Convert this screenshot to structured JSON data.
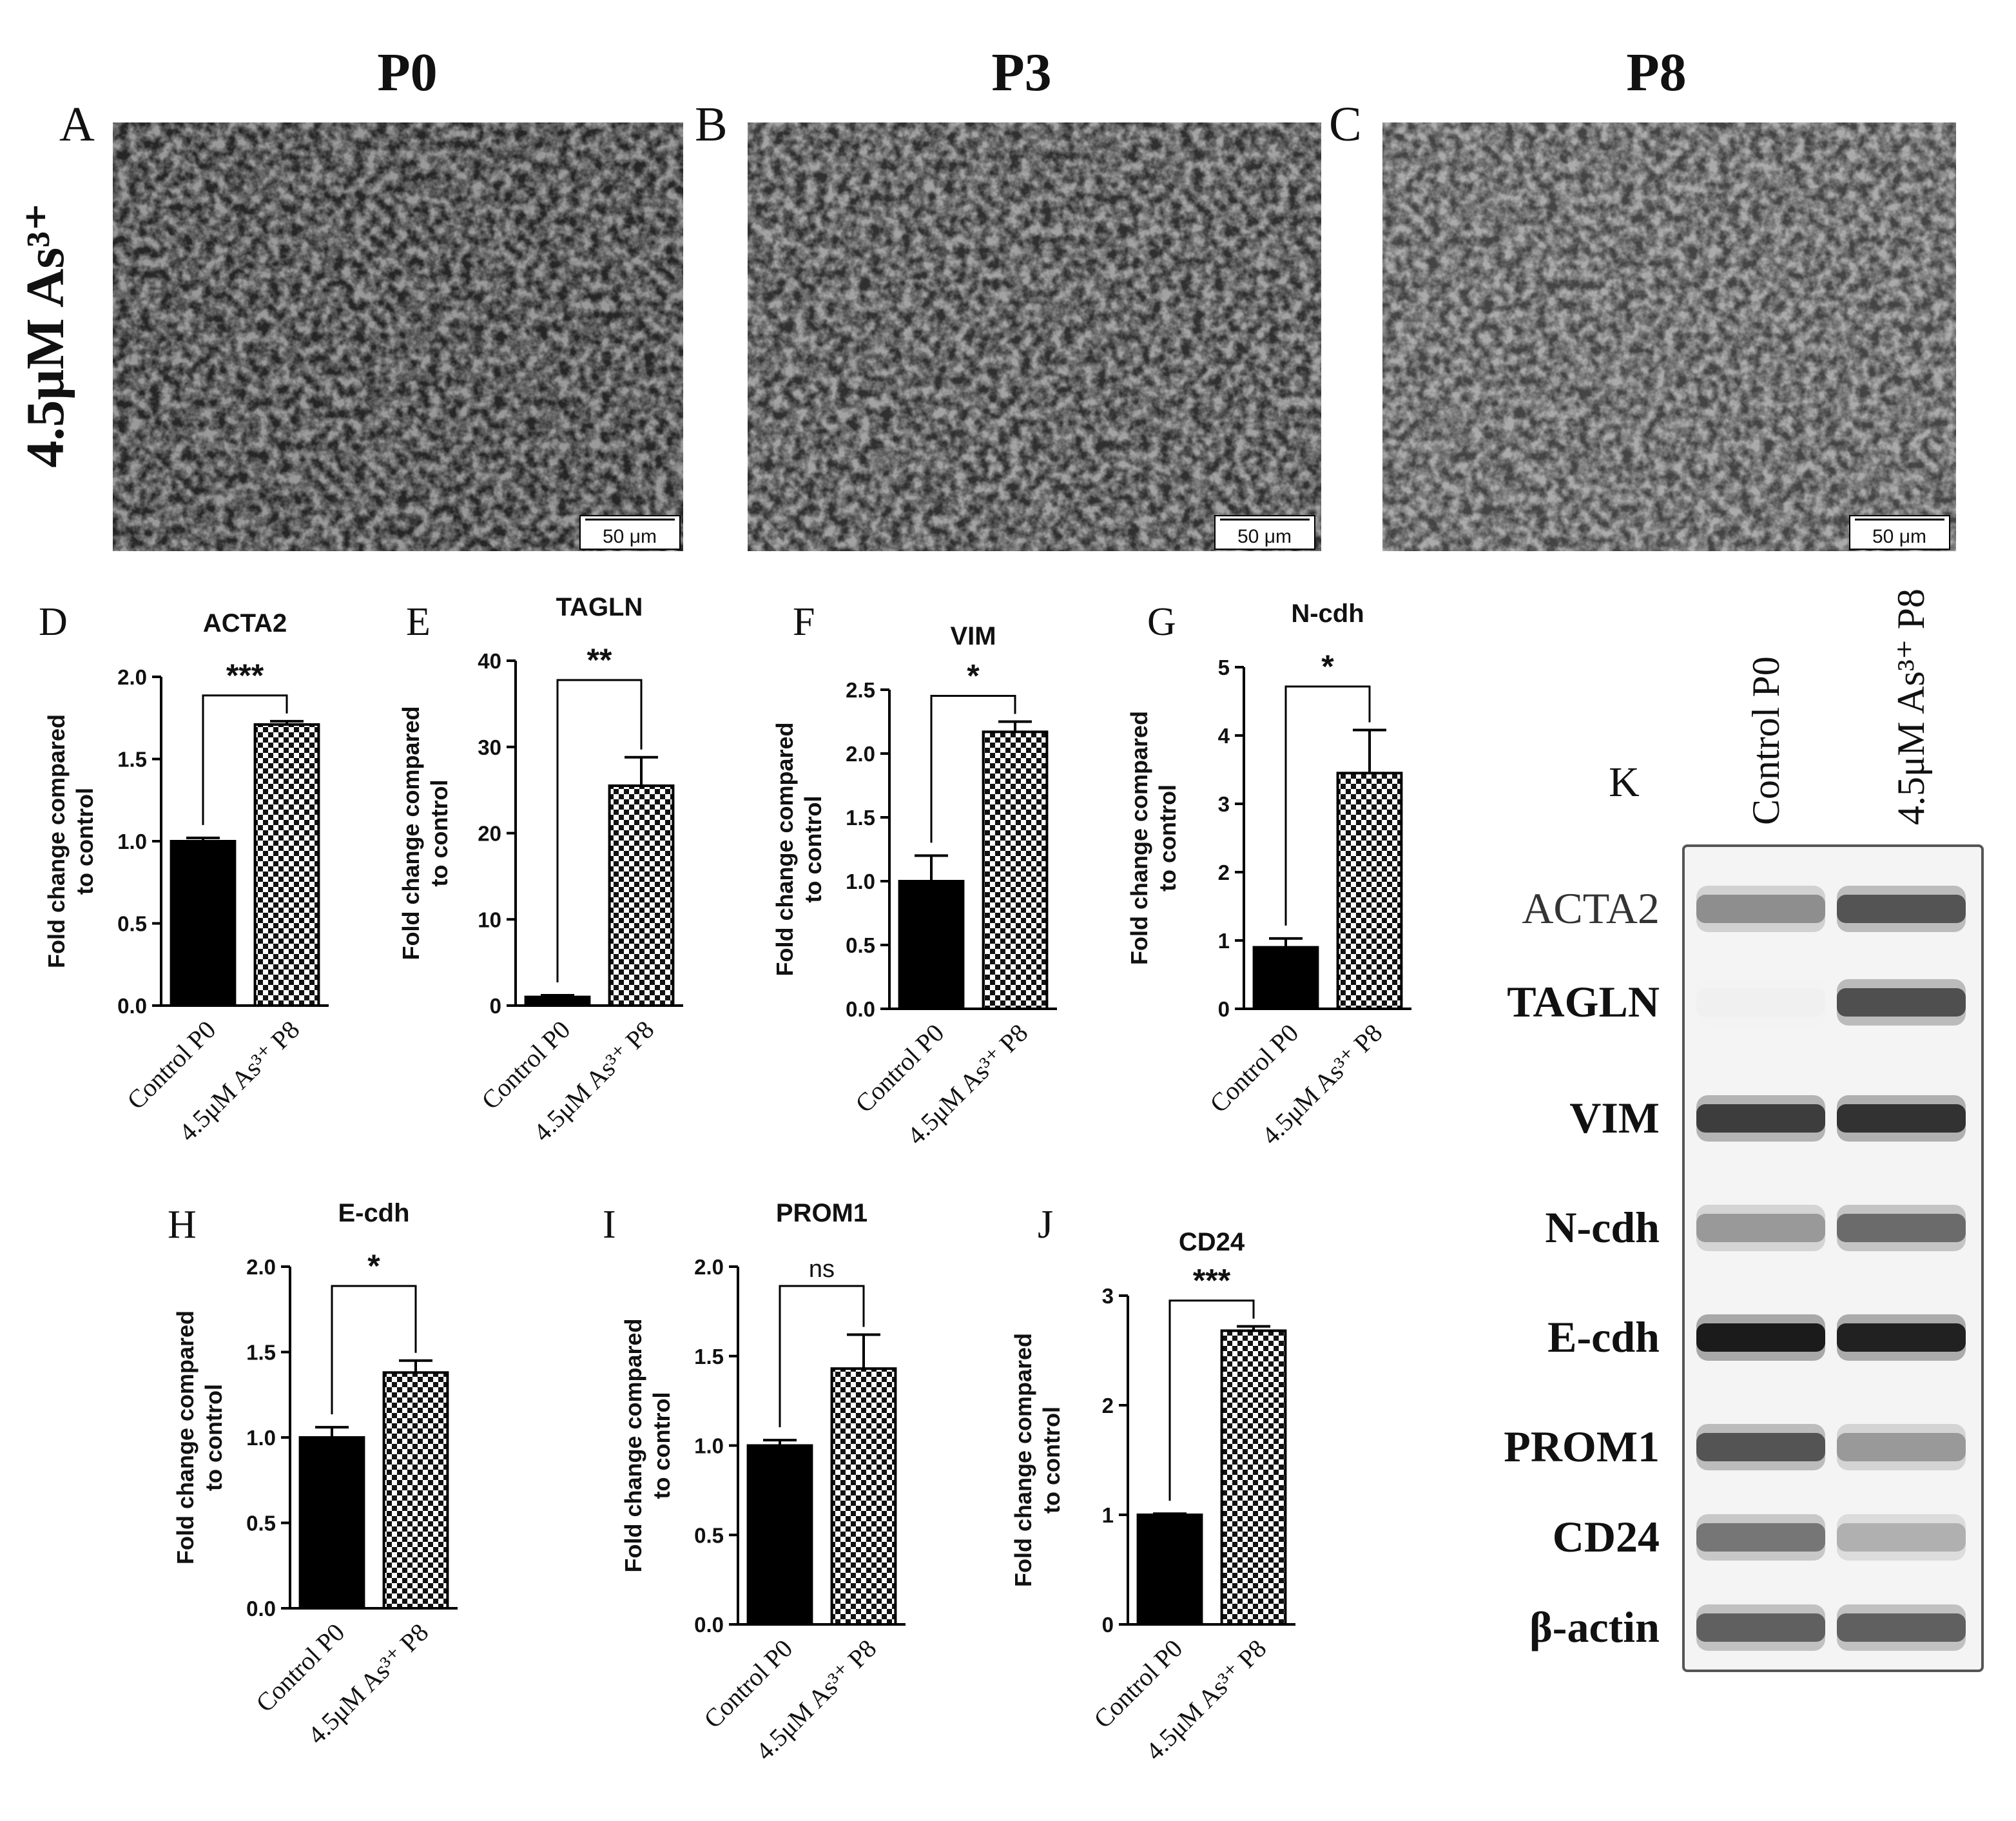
{
  "row_label": "4.5μM As³⁺",
  "micrographs": [
    {
      "letter": "A",
      "passage": "P0",
      "scale_bar": "50 μm"
    },
    {
      "letter": "B",
      "passage": "P3",
      "scale_bar": "50 μm"
    },
    {
      "letter": "C",
      "passage": "P8",
      "scale_bar": "50 μm"
    }
  ],
  "chart_data": [
    {
      "panel": "D",
      "type": "bar",
      "title": "ACTA2",
      "ylabel": "Fold change compared to control",
      "categories": [
        "Control P0",
        "4.5μM As³⁺ P8"
      ],
      "values": [
        1.0,
        1.71
      ],
      "errors": [
        0.02,
        0.02
      ],
      "ylim": [
        0,
        2.0
      ],
      "yticks": [
        "0.0",
        "0.5",
        "1.0",
        "1.5",
        "2.0"
      ],
      "significance": "***"
    },
    {
      "panel": "E",
      "type": "bar",
      "title": "TAGLN",
      "ylabel": "Fold change compared to control",
      "categories": [
        "Control P0",
        "4.5μM As³⁺ P8"
      ],
      "values": [
        1.0,
        25.5
      ],
      "errors": [
        0.2,
        3.3
      ],
      "ylim": [
        0,
        40
      ],
      "yticks": [
        "0",
        "10",
        "20",
        "30",
        "40"
      ],
      "significance": "**"
    },
    {
      "panel": "F",
      "type": "bar",
      "title": "VIM",
      "ylabel": "Fold change compared to control",
      "categories": [
        "Control P0",
        "4.5μM As³⁺ P8"
      ],
      "values": [
        1.0,
        2.17
      ],
      "errors": [
        0.2,
        0.08
      ],
      "ylim": [
        0,
        2.5
      ],
      "yticks": [
        "0.0",
        "0.5",
        "1.0",
        "1.5",
        "2.0",
        "2.5"
      ],
      "significance": "*"
    },
    {
      "panel": "G",
      "type": "bar",
      "title": "N-cdh",
      "ylabel": "Fold change compared to control",
      "categories": [
        "Control P0",
        "4.5μM As³⁺ P8"
      ],
      "values": [
        0.9,
        3.45
      ],
      "errors": [
        0.13,
        0.63
      ],
      "ylim": [
        0,
        5
      ],
      "yticks": [
        "0",
        "1",
        "2",
        "3",
        "4",
        "5"
      ],
      "significance": "*"
    },
    {
      "panel": "H",
      "type": "bar",
      "title": "E-cdh",
      "ylabel": "Fold change compared to control",
      "categories": [
        "Control P0",
        "4.5μM As³⁺ P8"
      ],
      "values": [
        1.0,
        1.38
      ],
      "errors": [
        0.06,
        0.07
      ],
      "ylim": [
        0,
        2.0
      ],
      "yticks": [
        "0.0",
        "0.5",
        "1.0",
        "1.5",
        "2.0"
      ],
      "significance": "*"
    },
    {
      "panel": "I",
      "type": "bar",
      "title": "PROM1",
      "ylabel": "Fold change compared to control",
      "categories": [
        "Control P0",
        "4.5μM As³⁺ P8"
      ],
      "values": [
        1.0,
        1.43
      ],
      "errors": [
        0.03,
        0.19
      ],
      "ylim": [
        0,
        2.0
      ],
      "yticks": [
        "0.0",
        "0.5",
        "1.0",
        "1.5",
        "2.0"
      ],
      "significance": "ns"
    },
    {
      "panel": "J",
      "type": "bar",
      "title": "CD24",
      "ylabel": "Fold change compared to control",
      "categories": [
        "Control P0",
        "4.5μM As³⁺ P8"
      ],
      "values": [
        1.0,
        2.68
      ],
      "errors": [
        0.01,
        0.04
      ],
      "ylim": [
        0,
        3
      ],
      "yticks": [
        "0",
        "1",
        "2",
        "3"
      ],
      "significance": "***"
    }
  ],
  "blot": {
    "letter": "K",
    "lanes": [
      "Control P0",
      "4.5μM As³⁺ P8"
    ],
    "bands": [
      {
        "label": "ACTA2",
        "intensity": [
          0.45,
          0.7
        ]
      },
      {
        "label": "TAGLN",
        "intensity": [
          0.02,
          0.72
        ]
      },
      {
        "label": "VIM",
        "intensity": [
          0.8,
          0.85
        ]
      },
      {
        "label": "N-cdh",
        "intensity": [
          0.4,
          0.6
        ]
      },
      {
        "label": "E-cdh",
        "intensity": [
          0.95,
          0.92
        ]
      },
      {
        "label": "PROM1",
        "intensity": [
          0.7,
          0.4
        ]
      },
      {
        "label": "CD24",
        "intensity": [
          0.55,
          0.3
        ]
      },
      {
        "label": "β-actin",
        "intensity": [
          0.65,
          0.65
        ]
      }
    ]
  }
}
